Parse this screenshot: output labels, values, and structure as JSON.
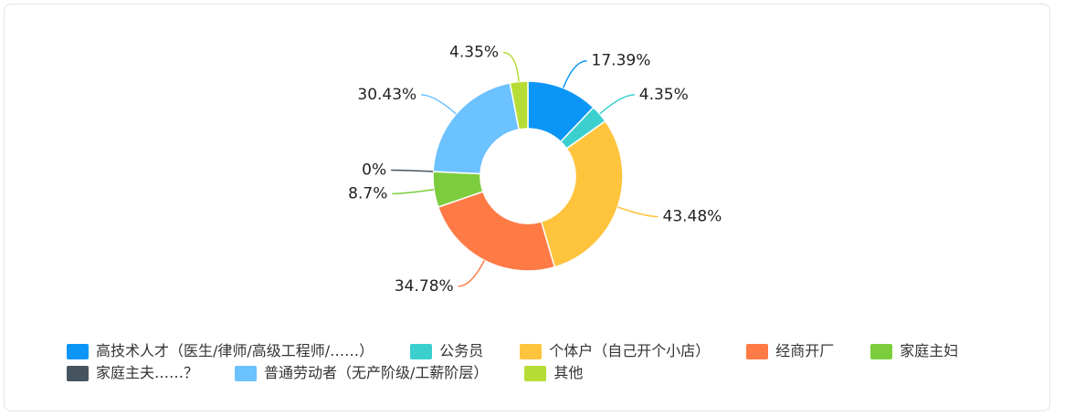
{
  "chart_data": {
    "type": "pie",
    "variant": "donut",
    "title": "",
    "slices": [
      {
        "name": "高技术人才（医生/律师/高级工程师/……）",
        "value": 17.39,
        "label": "17.39%",
        "color": "#0b96f7"
      },
      {
        "name": "公务员",
        "value": 4.35,
        "label": "4.35%",
        "color": "#3ccfcf"
      },
      {
        "name": "个体户（自己开个小店）",
        "value": 43.48,
        "label": "43.48%",
        "color": "#fec43e"
      },
      {
        "name": "经商开厂",
        "value": 34.78,
        "label": "34.78%",
        "color": "#ff7a45"
      },
      {
        "name": "家庭主妇",
        "value": 8.7,
        "label": "8.7%",
        "color": "#7ccd3e"
      },
      {
        "name": "家庭主夫……？",
        "value": 0,
        "label": "0%",
        "color": "#46545f"
      },
      {
        "name": "普通劳动者（无产阶级/工薪阶层）",
        "value": 30.43,
        "label": "30.43%",
        "color": "#6cc1ff"
      },
      {
        "name": "其他",
        "value": 4.35,
        "label": "4.35%",
        "color": "#b6dd35"
      }
    ],
    "legend_position": "bottom"
  }
}
